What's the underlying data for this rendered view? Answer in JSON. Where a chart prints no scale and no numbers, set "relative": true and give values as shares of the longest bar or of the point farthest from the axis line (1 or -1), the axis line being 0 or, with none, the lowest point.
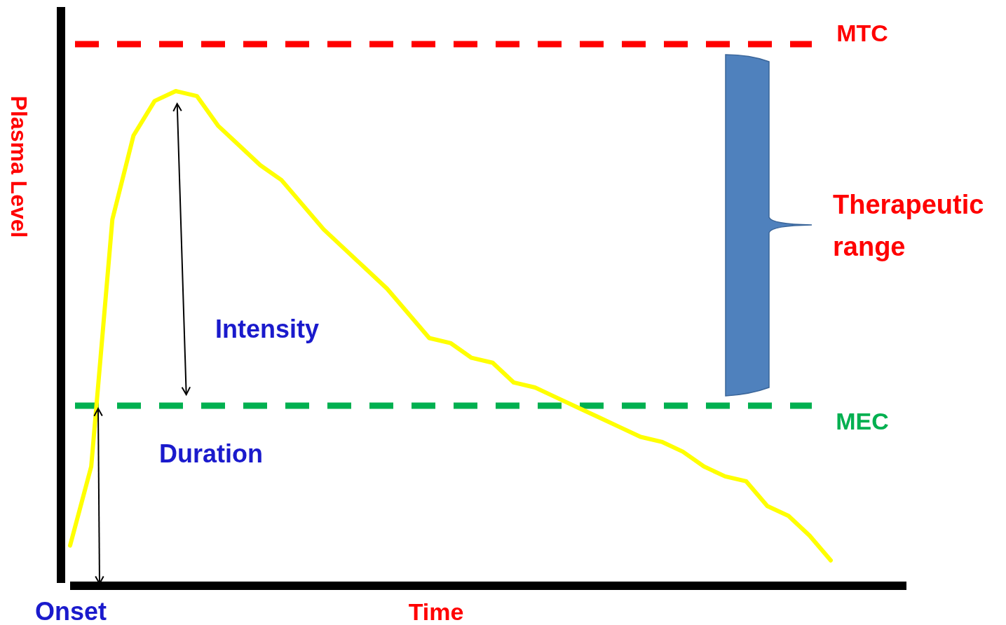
{
  "chart_data": {
    "type": "line",
    "relative": true,
    "xlabel": "Time",
    "ylabel": "Plasma Level",
    "categories": [
      null,
      null,
      null,
      null,
      null,
      null,
      null,
      null,
      null,
      null,
      null,
      null,
      null,
      null,
      null,
      null,
      null,
      null,
      null,
      null,
      null,
      null,
      null,
      null,
      null,
      null,
      null,
      null,
      null,
      null,
      null,
      null,
      null,
      null,
      null,
      null,
      null
    ],
    "series": [
      {
        "color": "#ffff00",
        "values": [
          0.08,
          0.24,
          0.74,
          0.91,
          0.98,
          1.0,
          0.99,
          0.93,
          0.89,
          0.85,
          0.82,
          0.77,
          0.72,
          0.68,
          0.64,
          0.6,
          0.55,
          0.5,
          0.49,
          0.46,
          0.45,
          0.41,
          0.4,
          0.38,
          0.36,
          0.34,
          0.32,
          0.3,
          0.29,
          0.27,
          0.24,
          0.22,
          0.21,
          0.16,
          0.14,
          0.1,
          0.05
        ]
      }
    ],
    "ref_lines": [
      {
        "axis": "y",
        "value": 1.095,
        "label": "MTC",
        "color": "#ff0000",
        "line_style": "dashed"
      },
      {
        "axis": "y",
        "value": 0.363,
        "label": "MEC",
        "color": "#00b050",
        "line_style": "dashed"
      }
    ],
    "annotations": [
      "Intensity",
      "Duration",
      "Onset",
      "Therapeutic range"
    ]
  }
}
